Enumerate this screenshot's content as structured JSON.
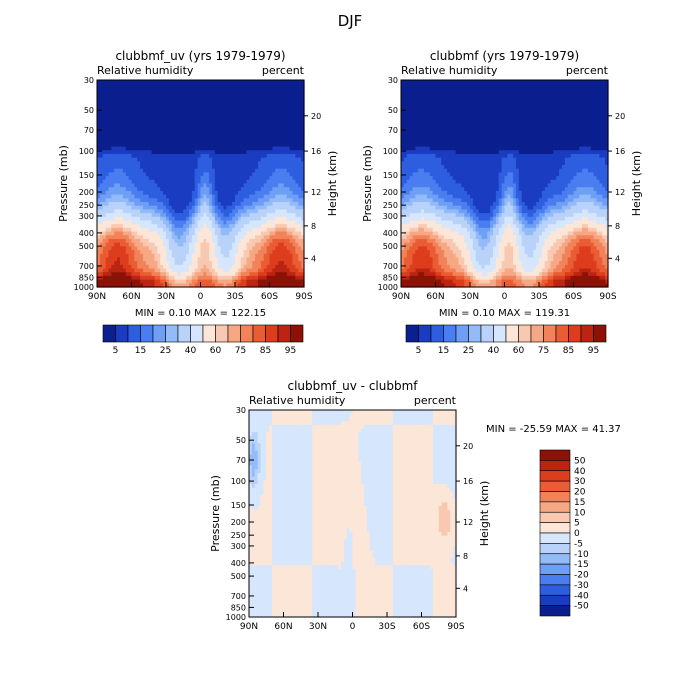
{
  "chart_data": {
    "type": "heatmap",
    "title": "DJF",
    "colors": {
      "full": [
        "#0b1f8f",
        "#1a3cc1",
        "#2e5ee0",
        "#4a7ef0",
        "#6e9ff5",
        "#93bbf8",
        "#b8d2fa",
        "#d6e6fc",
        "#fbe6d8",
        "#f9c8b0",
        "#f6a884",
        "#f2825a",
        "#ea5c33",
        "#dc3d1c",
        "#bb2412",
        "#8c1207"
      ],
      "diff": [
        "#0b1f8f",
        "#1a3cc1",
        "#2e5ee0",
        "#4a7ef0",
        "#6e9ff5",
        "#93bbf8",
        "#b8d2fa",
        "#d6e6fc",
        "#fbe6d8",
        "#f9c8b0",
        "#f6a884",
        "#f2825a",
        "#ea5c33",
        "#dc3d1c",
        "#bb2412",
        "#8c1207"
      ]
    },
    "panels": [
      {
        "title": "clubbmf_uv (yrs 1979-1979)",
        "left_label": "Relative humidity",
        "right_label": "percent",
        "ylabel": "Pressure (mb)",
        "y2label": "Height (km)",
        "xticks": [
          "90N",
          "60N",
          "30N",
          "0",
          "30S",
          "60S",
          "90S"
        ],
        "yticks": [
          "30",
          "50",
          "70",
          "100",
          "150",
          "200",
          "250",
          "300",
          "400",
          "500",
          "700",
          "850",
          "1000"
        ],
        "y2ticks": [
          "20",
          "16",
          "12",
          "8",
          "4"
        ],
        "stats": "MIN =    0.10   MAX = 122.15",
        "min": 0.1,
        "max": 122.15,
        "colorbar_labels": [
          "5",
          "15",
          "25",
          "40",
          "60",
          "75",
          "85",
          "95"
        ]
      },
      {
        "title": "clubbmf (yrs 1979-1979)",
        "left_label": "Relative humidity",
        "right_label": "percent",
        "ylabel": "Pressure (mb)",
        "y2label": "Height (km)",
        "xticks": [
          "90N",
          "60N",
          "30N",
          "0",
          "30S",
          "60S",
          "90S"
        ],
        "yticks": [
          "30",
          "50",
          "70",
          "100",
          "150",
          "200",
          "250",
          "300",
          "400",
          "500",
          "700",
          "850",
          "1000"
        ],
        "y2ticks": [
          "20",
          "16",
          "12",
          "8",
          "4"
        ],
        "stats": "MIN =    0.10   MAX = 119.31",
        "min": 0.1,
        "max": 119.31,
        "colorbar_labels": [
          "5",
          "15",
          "25",
          "40",
          "60",
          "75",
          "85",
          "95"
        ]
      },
      {
        "title": "clubbmf_uv - clubbmf",
        "left_label": "Relative humidity",
        "right_label": "percent",
        "ylabel": "Pressure (mb)",
        "y2label": "Height (km)",
        "xticks": [
          "90N",
          "60N",
          "30N",
          "0",
          "30S",
          "60S",
          "90S"
        ],
        "yticks": [
          "30",
          "50",
          "70",
          "100",
          "150",
          "200",
          "250",
          "300",
          "400",
          "500",
          "700",
          "850",
          "1000"
        ],
        "y2ticks": [
          "20",
          "16",
          "12",
          "8",
          "4"
        ],
        "stats": "MIN = -25.59   MAX =  41.37",
        "min": -25.59,
        "max": 41.37,
        "colorbar_labels": [
          "50",
          "40",
          "30",
          "20",
          "15",
          "10",
          "5",
          "0",
          "-5",
          "-10",
          "-15",
          "-20",
          "-30",
          "-40",
          "-50"
        ]
      }
    ]
  }
}
